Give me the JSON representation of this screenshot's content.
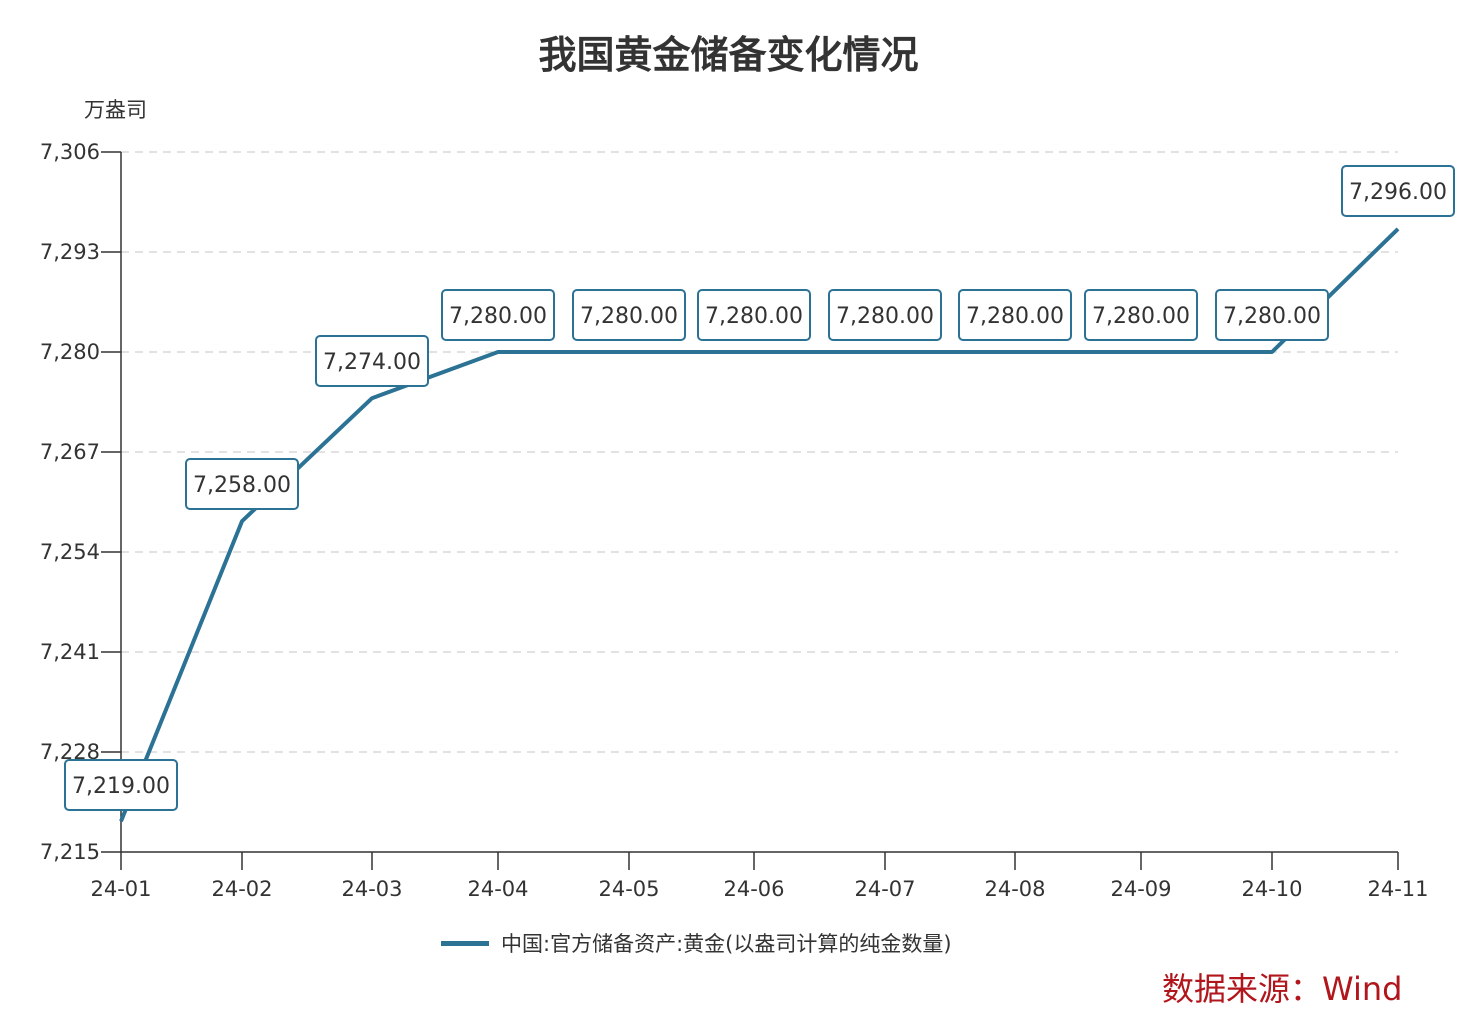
{
  "title": "我国黄金储备变化情况",
  "y_unit": "万盎司",
  "source": "数据来源：Wind",
  "legend": {
    "label": "中国:官方储备资产:黄金(以盎司计算的纯金数量)",
    "color": "#2b7295"
  },
  "colors": {
    "line": "#2b7295",
    "grid": "#d9d9d9",
    "axis": "#333333",
    "label_border": "#2b7295",
    "source": "#b0161c"
  },
  "chart_data": {
    "type": "line",
    "title": "我国黄金储备变化情况",
    "xlabel": "",
    "ylabel": "万盎司",
    "categories": [
      "24-01",
      "24-02",
      "24-03",
      "24-04",
      "24-05",
      "24-06",
      "24-07",
      "24-08",
      "24-09",
      "24-10",
      "24-11"
    ],
    "series": [
      {
        "name": "中国:官方储备资产:黄金(以盎司计算的纯金数量)",
        "values": [
          7219,
          7258,
          7274,
          7280,
          7280,
          7280,
          7280,
          7280,
          7280,
          7280,
          7296
        ]
      }
    ],
    "data_labels": [
      "7,219.00",
      "7,258.00",
      "7,274.00",
      "7,280.00",
      "7,280.00",
      "7,280.00",
      "7,280.00",
      "7,280.00",
      "7,280.00",
      "7,280.00",
      "7,296.00"
    ],
    "y_ticks": [
      "7,215",
      "7,228",
      "7,241",
      "7,254",
      "7,267",
      "7,280",
      "7,293",
      "7,306"
    ],
    "ylim": [
      7215,
      7306
    ],
    "grid": true,
    "legend_position": "bottom"
  }
}
